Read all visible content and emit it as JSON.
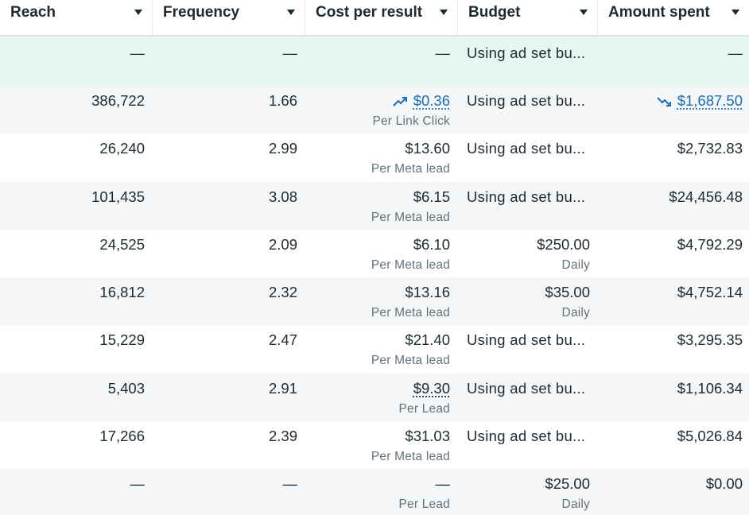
{
  "columns": [
    {
      "key": "reach",
      "label": "Reach"
    },
    {
      "key": "frequency",
      "label": "Frequency"
    },
    {
      "key": "cost_per_result",
      "label": "Cost per result"
    },
    {
      "key": "budget",
      "label": "Budget"
    },
    {
      "key": "amount_spent",
      "label": "Amount spent"
    }
  ],
  "summary": {
    "reach": "—",
    "frequency": "—",
    "cost_per_result": "—",
    "budget": "Using ad set bu...",
    "amount_spent": "—"
  },
  "rows": [
    {
      "reach": "386,722",
      "frequency": "1.66",
      "cost": "$0.36",
      "cost_sub": "Per Link Click",
      "budget": "Using ad set bu...",
      "budget_sub": "",
      "spent": "$1,687.50"
    },
    {
      "reach": "26,240",
      "frequency": "2.99",
      "cost": "$13.60",
      "cost_sub": "Per Meta lead",
      "budget": "Using ad set bu...",
      "budget_sub": "",
      "spent": "$2,732.83"
    },
    {
      "reach": "101,435",
      "frequency": "3.08",
      "cost": "$6.15",
      "cost_sub": "Per Meta lead",
      "budget": "Using ad set bu...",
      "budget_sub": "",
      "spent": "$24,456.48"
    },
    {
      "reach": "24,525",
      "frequency": "2.09",
      "cost": "$6.10",
      "cost_sub": "Per Meta lead",
      "budget": "$250.00",
      "budget_sub": "Daily",
      "spent": "$4,792.29"
    },
    {
      "reach": "16,812",
      "frequency": "2.32",
      "cost": "$13.16",
      "cost_sub": "Per Meta lead",
      "budget": "$35.00",
      "budget_sub": "Daily",
      "spent": "$4,752.14"
    },
    {
      "reach": "15,229",
      "frequency": "2.47",
      "cost": "$21.40",
      "cost_sub": "Per Meta lead",
      "budget": "Using ad set bu...",
      "budget_sub": "",
      "spent": "$3,295.35"
    },
    {
      "reach": "5,403",
      "frequency": "2.91",
      "cost": "$9.30",
      "cost_sub": "Per Lead",
      "budget": "Using ad set bu...",
      "budget_sub": "",
      "spent": "$1,106.34"
    },
    {
      "reach": "17,266",
      "frequency": "2.39",
      "cost": "$31.03",
      "cost_sub": "Per Meta lead",
      "budget": "Using ad set bu...",
      "budget_sub": "",
      "spent": "$5,026.84"
    },
    {
      "reach": "—",
      "frequency": "—",
      "cost": "—",
      "cost_sub": "Per Lead",
      "budget": "$25.00",
      "budget_sub": "Daily",
      "spent": "$0.00"
    }
  ],
  "colors": {
    "link": "#1a6fb5",
    "summary_bg": "#e6f6f0",
    "alt_row_bg": "#f5f6f7",
    "text": "#1c2b33",
    "subtext": "#65707a"
  },
  "icons": {
    "row1_cost_trend": "trend-up-icon",
    "row1_spent_trend": "trend-down-icon",
    "header_sort": "caret-down-icon"
  }
}
